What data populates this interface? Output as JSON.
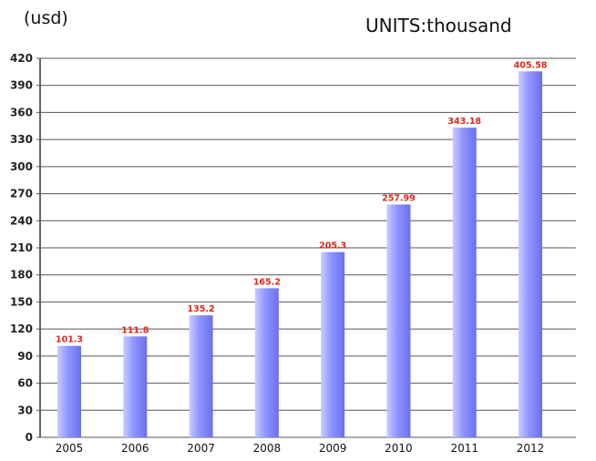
{
  "unit_label": "(usd)",
  "units_note": "UNITS:thousand",
  "colors": {
    "bar_light": "#c8ccff",
    "bar_mid": "#8e93ff",
    "bar_dark": "#6a70ee",
    "grid": "#555555",
    "data_label": "#e0261a"
  },
  "chart_data": {
    "type": "bar",
    "title": "",
    "xlabel": "",
    "ylabel": "(usd)",
    "categories": [
      "2005",
      "2006",
      "2007",
      "2008",
      "2009",
      "2010",
      "2011",
      "2012"
    ],
    "values": [
      101.3,
      111.8,
      135.2,
      165.2,
      205.3,
      257.99,
      343.18,
      405.58
    ],
    "value_labels": [
      "101.3",
      "111.8",
      "135.2",
      "165.2",
      "205.3",
      "257.99",
      "343.18",
      "405.58"
    ],
    "ylim": [
      0,
      420
    ],
    "yticks": [
      "0",
      "30",
      "60",
      "90",
      "120",
      "150",
      "180",
      "210",
      "240",
      "270",
      "300",
      "330",
      "360",
      "390",
      "420"
    ],
    "grid": true,
    "legend": "none"
  }
}
